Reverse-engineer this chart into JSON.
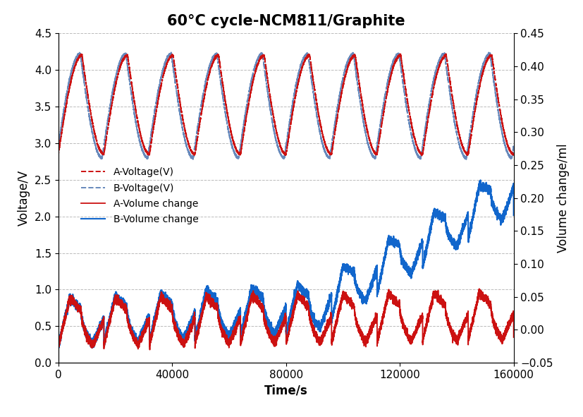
{
  "title": "60°C cycle-NCM811/Graphite",
  "xlabel": "Time/s",
  "ylabel_left": "Voltage/V",
  "ylabel_right": "Volume change/ml",
  "xlim": [
    0,
    160000
  ],
  "ylim_left": [
    0,
    4.5
  ],
  "ylim_right": [
    -0.05,
    0.45
  ],
  "xticks": [
    0,
    40000,
    80000,
    120000,
    160000
  ],
  "yticks_left": [
    0,
    0.5,
    1.0,
    1.5,
    2.0,
    2.5,
    3.0,
    3.5,
    4.0,
    4.5
  ],
  "yticks_right": [
    -0.05,
    0,
    0.05,
    0.1,
    0.15,
    0.2,
    0.25,
    0.3,
    0.35,
    0.4,
    0.45
  ],
  "color_A": "#cc1111",
  "color_B": "#6688bb",
  "color_B_vol": "#1166cc",
  "legend_labels": [
    "A-Voltage(V)",
    "B-Voltage(V)",
    "A-Volume change",
    "B-Volume change"
  ],
  "background_color": "#ffffff",
  "grid_color": "#bbbbbb",
  "title_fontsize": 15,
  "label_fontsize": 12,
  "tick_fontsize": 11,
  "cycle_period": 16000,
  "total_time": 160000,
  "voltage_max_A": 4.2,
  "voltage_min_A": 2.85,
  "voltage_max_B": 4.22,
  "voltage_min_B": 2.8,
  "phase_B": 600
}
